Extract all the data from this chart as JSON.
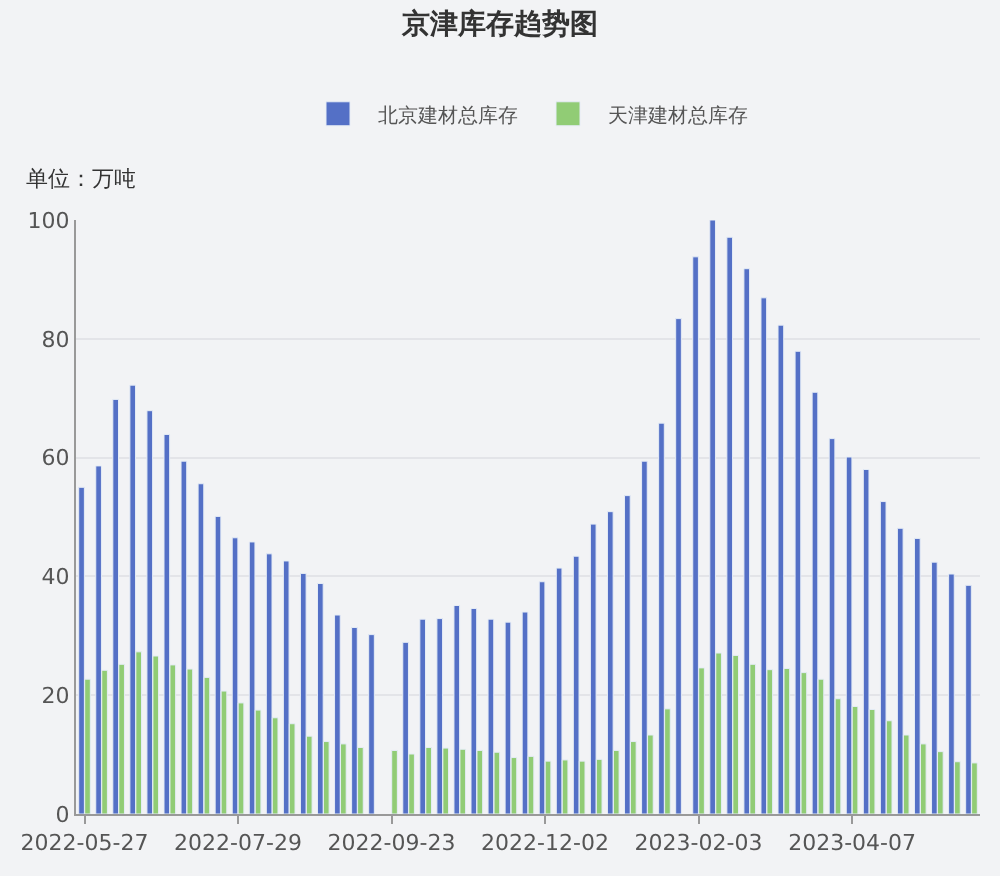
{
  "chart_data": {
    "type": "bar",
    "title": "京津库存趋势图",
    "ylabel": "单位：万吨",
    "categories": [
      "2022-05-27",
      null,
      null,
      null,
      null,
      null,
      null,
      null,
      null,
      "2022-07-29",
      null,
      null,
      null,
      null,
      null,
      null,
      null,
      null,
      "2022-09-23",
      null,
      null,
      null,
      null,
      null,
      null,
      null,
      null,
      "2022-12-02",
      null,
      null,
      null,
      null,
      null,
      null,
      null,
      null,
      "2023-02-03",
      null,
      null,
      null,
      null,
      null,
      null,
      null,
      null,
      "2023-04-07",
      null,
      null,
      null,
      null,
      null,
      null,
      null
    ],
    "series": [
      {
        "name": "北京建材总库存",
        "color": "#5470c6",
        "values": [
          55.0,
          58.6,
          69.8,
          72.2,
          67.9,
          63.9,
          59.4,
          55.6,
          50.1,
          46.5,
          45.8,
          43.8,
          42.6,
          40.5,
          38.8,
          33.5,
          31.4,
          30.2,
          null,
          28.9,
          32.8,
          32.9,
          35.1,
          34.6,
          32.8,
          32.3,
          34.0,
          39.1,
          41.4,
          43.4,
          48.8,
          50.9,
          53.6,
          59.4,
          65.8,
          83.4,
          93.8,
          100,
          97.1,
          91.8,
          86.9,
          82.3,
          77.9,
          71.0,
          63.2,
          60.1,
          58.0,
          52.6,
          48.1,
          46.4,
          42.4,
          40.4,
          38.5
        ]
      },
      {
        "name": "天津建材总库存",
        "color": "#91cc75",
        "values": [
          22.7,
          24.2,
          25.2,
          27.3,
          26.6,
          25.1,
          24.4,
          23.0,
          20.7,
          18.7,
          17.5,
          16.2,
          15.2,
          13.1,
          12.2,
          11.8,
          11.2,
          null,
          10.7,
          10.1,
          11.2,
          11.1,
          10.9,
          10.7,
          10.4,
          9.5,
          9.7,
          8.9,
          9.1,
          8.9,
          9.2,
          10.7,
          12.2,
          13.3,
          17.7,
          null,
          24.6,
          27.1,
          26.7,
          25.2,
          24.3,
          24.5,
          23.8,
          22.7,
          19.4,
          18.1,
          17.6,
          15.7,
          13.3,
          11.8,
          10.5,
          8.8,
          8.6
        ]
      }
    ],
    "ylim": [
      0,
      100
    ],
    "yticks": [
      0,
      20,
      40,
      60,
      80,
      100
    ],
    "grid": "y",
    "legend": "top"
  }
}
